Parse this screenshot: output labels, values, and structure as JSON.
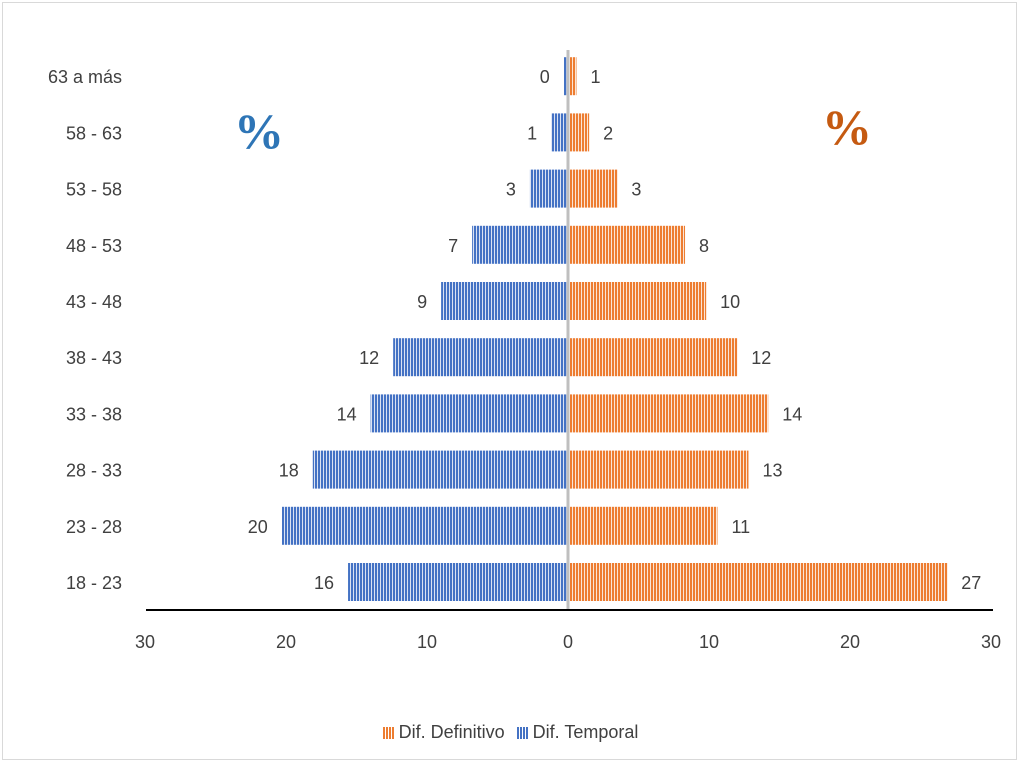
{
  "colors": {
    "definitivo": "#ED7D31",
    "temporal": "#4472C4",
    "axis": "#000000",
    "center_line": "#BFBFBF",
    "text": "#404040",
    "percent_left": "#2E75B6",
    "percent_right": "#C55A11"
  },
  "annotations": {
    "percent_left": "%",
    "percent_right": "%"
  },
  "legend": {
    "definitivo_label": "Dif. Definitivo",
    "temporal_label": "Dif. Temporal"
  },
  "chart_data": {
    "type": "bar",
    "orientation": "horizontal",
    "layout": "diverging",
    "title": "",
    "xlabel": "",
    "ylabel": "",
    "categories": [
      "18 - 23",
      "23 - 28",
      "28 - 33",
      "33 - 38",
      "38 - 43",
      "43 - 48",
      "48 - 53",
      "53 - 58",
      "58 - 63",
      "63 a más"
    ],
    "series": [
      {
        "name": "Dif. Temporal",
        "side": "left",
        "values": [
          15.6,
          20.3,
          18.1,
          14.0,
          12.4,
          9.0,
          6.8,
          2.7,
          1.2,
          0.3
        ],
        "labels": [
          "16",
          "20",
          "18",
          "14",
          "12",
          "9",
          "7",
          "3",
          "1",
          "0"
        ]
      },
      {
        "name": "Dif. Definitivo",
        "side": "right",
        "values": [
          26.9,
          10.6,
          12.8,
          14.2,
          12.0,
          9.8,
          8.3,
          3.5,
          1.5,
          0.6
        ],
        "labels": [
          "27",
          "11",
          "13",
          "14",
          "12",
          "10",
          "8",
          "3",
          "2",
          "1"
        ]
      }
    ],
    "xlim": [
      -30,
      30
    ],
    "x_ticks": [
      -30,
      -20,
      -10,
      0,
      10,
      20,
      30
    ],
    "x_tick_labels": [
      "30",
      "20",
      "10",
      "0",
      "10",
      "20",
      "30"
    ],
    "grid": false,
    "legend_position": "bottom"
  }
}
